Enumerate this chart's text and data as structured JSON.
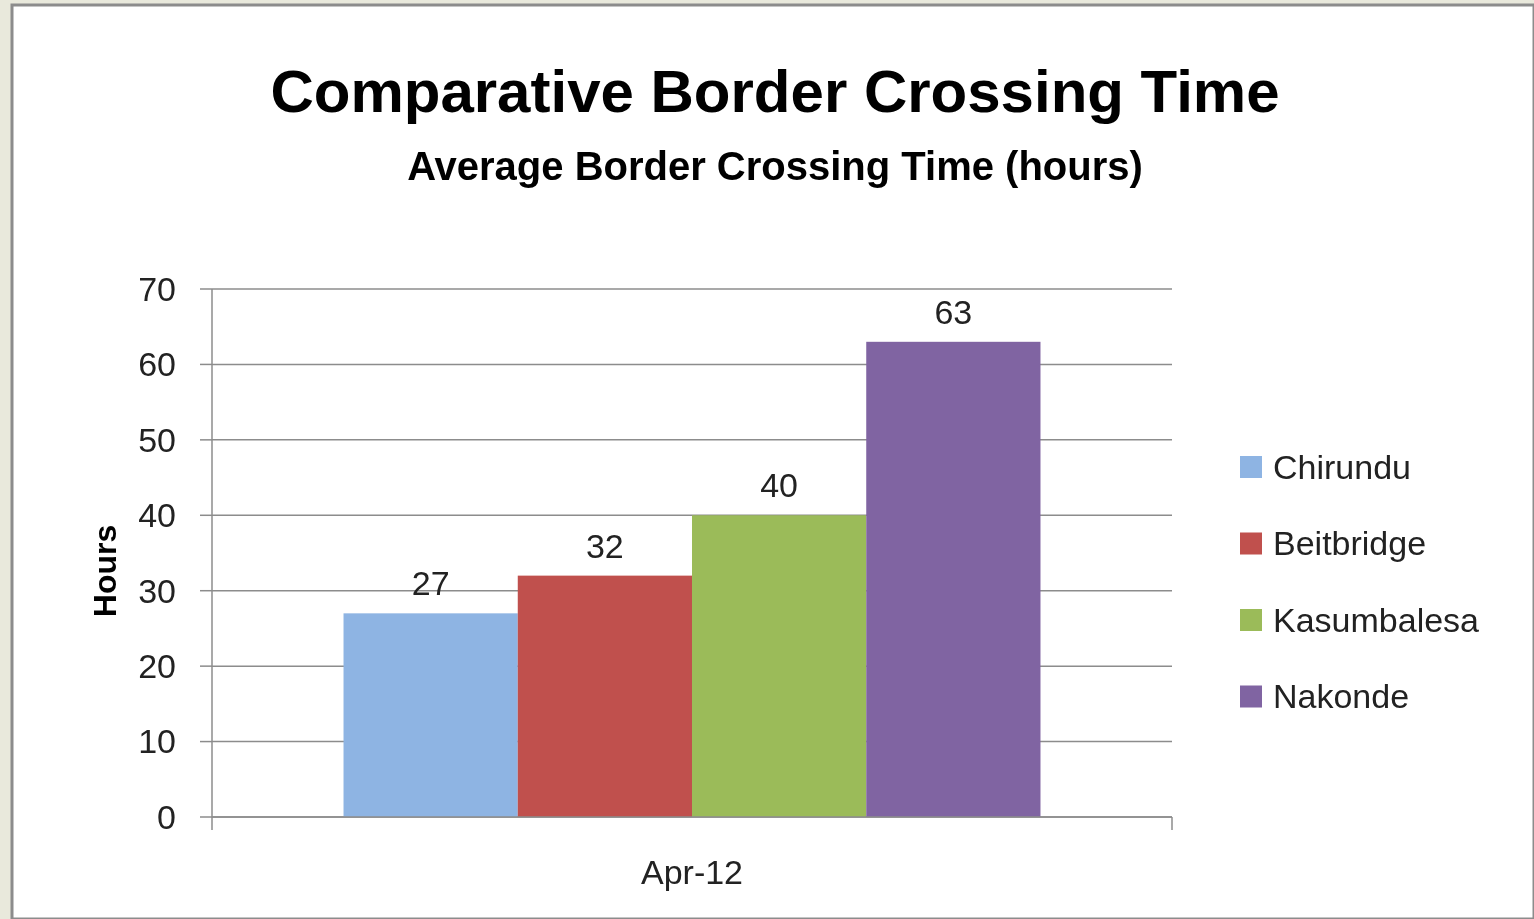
{
  "chart_data": {
    "type": "bar",
    "title": "Comparative Border Crossing Time",
    "subtitle": "Average Border Crossing Time (hours)",
    "ylabel": "Hours",
    "categories": [
      "Apr-12"
    ],
    "series": [
      {
        "name": "Chirundu",
        "color": "#8eb4e3",
        "values": [
          27
        ]
      },
      {
        "name": "Beitbridge",
        "color": "#c0504d",
        "values": [
          32
        ]
      },
      {
        "name": "Kasumbalesa",
        "color": "#9bbb59",
        "values": [
          40
        ]
      },
      {
        "name": "Nakonde",
        "color": "#8064a2",
        "values": [
          63
        ]
      }
    ],
    "ylim": [
      0,
      70
    ],
    "yticks": [
      0,
      10,
      20,
      30,
      40,
      50,
      60,
      70
    ],
    "grid": "y",
    "legend": "right",
    "data_labels": true
  }
}
